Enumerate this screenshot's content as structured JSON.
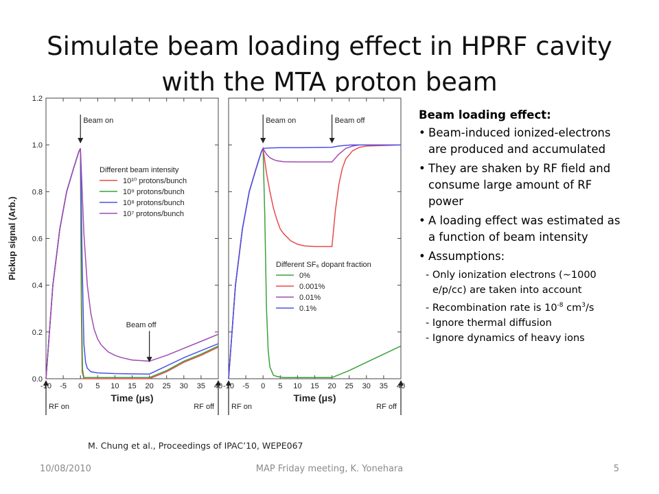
{
  "slide": {
    "title_line1": "Simulate beam loading effect in HPRF cavity",
    "title_line2": "with the MTA proton beam",
    "citation": "M. Chung et al., Proceedings of IPAC’10, WEPE067",
    "footer": {
      "date": "10/08/2010",
      "meeting": "MAP Friday meeting, K. Yonehara",
      "page": "5"
    }
  },
  "bullets": {
    "heading": "Beam loading effect:",
    "items": [
      {
        "line1": "Beam-induced ionized-electrons",
        "line2": "are produced and accumulated"
      },
      {
        "line1": "They are shaken by RF field and",
        "line2": "consume large amount of RF",
        "line3": "power"
      },
      {
        "line1": "A loading effect was estimated as",
        "line2": "a function of beam intensity"
      },
      {
        "line1": "Assumptions:"
      }
    ],
    "assumptions": {
      "a1_line1": "- Only ionization electrons (~1000",
      "a1_line2": "e/p/cc) are taken into account",
      "a2_pre": "- Recombination rate is 10",
      "a2_exp": "-8",
      "a2_mid": " cm",
      "a2_exp2": "3",
      "a2_post": "/s",
      "a3": "- Ignore thermal diffusion",
      "a4": "- Ignore dynamics of heavy ions"
    }
  },
  "chart_data": [
    {
      "type": "line",
      "ylabel": "Pickup signal (Arb.)",
      "xlabel": "Time (μs)",
      "xlim": [
        -10,
        40
      ],
      "ylim": [
        0,
        1.2
      ],
      "xticks": [
        -10,
        -5,
        0,
        5,
        10,
        15,
        20,
        25,
        30,
        35,
        40
      ],
      "yticks": [
        "0.0",
        "0.2",
        "0.4",
        "0.6",
        "0.8",
        "1.0",
        "1.2"
      ],
      "annotations": {
        "beam_on": "Beam on",
        "beam_off": "Beam off",
        "rf_on": "RF on",
        "rf_off": "RF off"
      },
      "legend_title": "Different beam intensity",
      "legend_placement": "center-right",
      "series": [
        {
          "name": "10¹⁰ protons/bunch",
          "color": "#e8484a",
          "x": [
            -10,
            -8,
            -6,
            -4,
            -2,
            -0.5,
            0,
            0.25,
            0.5,
            1,
            20,
            25,
            30,
            35,
            40
          ],
          "y": [
            0,
            0.4,
            0.64,
            0.8,
            0.9,
            0.97,
            0.985,
            0.3,
            0.03,
            0.0,
            0.0,
            0.03,
            0.07,
            0.1,
            0.135
          ]
        },
        {
          "name": "10⁹ protons/bunch",
          "color": "#3aa03a",
          "x": [
            -10,
            -8,
            -6,
            -4,
            -2,
            -0.5,
            0,
            0.3,
            0.6,
            1,
            20,
            25,
            30,
            35,
            40
          ],
          "y": [
            0,
            0.4,
            0.64,
            0.8,
            0.9,
            0.97,
            0.985,
            0.35,
            0.04,
            0.005,
            0.005,
            0.035,
            0.075,
            0.105,
            0.14
          ]
        },
        {
          "name": "10⁸ protons/bunch",
          "color": "#4b50e8",
          "x": [
            -10,
            -8,
            -6,
            -4,
            -2,
            -0.5,
            0,
            0.5,
            1,
            1.5,
            2,
            3,
            5,
            10,
            20,
            25,
            30,
            35,
            40
          ],
          "y": [
            0,
            0.4,
            0.64,
            0.8,
            0.9,
            0.97,
            0.985,
            0.5,
            0.15,
            0.07,
            0.045,
            0.03,
            0.025,
            0.022,
            0.02,
            0.055,
            0.09,
            0.12,
            0.15
          ]
        },
        {
          "name": "10⁷ protons/bunch",
          "color": "#a04ab0",
          "x": [
            -10,
            -8,
            -6,
            -4,
            -2,
            -0.5,
            0,
            1,
            2,
            3,
            4,
            5,
            6,
            8,
            10,
            12,
            15,
            20,
            25,
            30,
            35,
            40
          ],
          "y": [
            0,
            0.4,
            0.64,
            0.8,
            0.9,
            0.97,
            0.985,
            0.62,
            0.4,
            0.28,
            0.21,
            0.17,
            0.145,
            0.115,
            0.1,
            0.09,
            0.08,
            0.075,
            0.1,
            0.13,
            0.16,
            0.19
          ]
        }
      ]
    },
    {
      "type": "line",
      "xlabel": "Time (μs)",
      "xlim": [
        -10,
        40
      ],
      "ylim": [
        0,
        1.2
      ],
      "xticks": [
        -10,
        -5,
        0,
        5,
        10,
        15,
        20,
        25,
        30,
        35,
        40
      ],
      "annotations": {
        "beam_on": "Beam on",
        "beam_off": "Beam off",
        "rf_on": "RF on",
        "rf_off": "RF off"
      },
      "legend_title": "Different SF₆ dopant fraction",
      "legend_placement": "bottom-right",
      "series": [
        {
          "name": "0%",
          "color": "#3aa03a",
          "x": [
            -10,
            -8,
            -6,
            -4,
            -2,
            -0.5,
            0,
            0.5,
            1,
            1.5,
            2,
            3,
            4,
            6,
            20,
            25,
            30,
            35,
            40
          ],
          "y": [
            0,
            0.4,
            0.64,
            0.8,
            0.9,
            0.97,
            0.985,
            0.7,
            0.3,
            0.12,
            0.05,
            0.015,
            0.01,
            0.005,
            0.005,
            0.035,
            0.07,
            0.105,
            0.14
          ]
        },
        {
          "name": "0.001%",
          "color": "#e8484a",
          "x": [
            -10,
            -8,
            -6,
            -4,
            -2,
            -0.5,
            0,
            1,
            2,
            3,
            4,
            5,
            6,
            8,
            10,
            12,
            15,
            20,
            21,
            22,
            23,
            24,
            26,
            28,
            30,
            40
          ],
          "y": [
            0,
            0.4,
            0.64,
            0.8,
            0.9,
            0.97,
            0.985,
            0.88,
            0.8,
            0.73,
            0.68,
            0.64,
            0.62,
            0.59,
            0.575,
            0.568,
            0.565,
            0.565,
            0.72,
            0.83,
            0.9,
            0.94,
            0.975,
            0.99,
            0.995,
            1.0
          ]
        },
        {
          "name": "0.01%",
          "color": "#a04ab0",
          "x": [
            -10,
            -8,
            -6,
            -4,
            -2,
            -0.5,
            0,
            1,
            2,
            3,
            4,
            6,
            10,
            20,
            22,
            24,
            26,
            28,
            40
          ],
          "y": [
            0,
            0.4,
            0.64,
            0.8,
            0.9,
            0.97,
            0.985,
            0.96,
            0.945,
            0.937,
            0.932,
            0.928,
            0.927,
            0.927,
            0.96,
            0.985,
            0.995,
            1.0,
            1.0
          ]
        },
        {
          "name": "0.1%",
          "color": "#4b50e8",
          "x": [
            -10,
            -8,
            -6,
            -4,
            -2,
            -0.5,
            0,
            2,
            5,
            10,
            20,
            22,
            24,
            26,
            40
          ],
          "y": [
            0,
            0.4,
            0.64,
            0.8,
            0.9,
            0.97,
            0.985,
            0.987,
            0.988,
            0.988,
            0.99,
            0.995,
            0.998,
            1.0,
            1.0
          ]
        }
      ]
    }
  ]
}
